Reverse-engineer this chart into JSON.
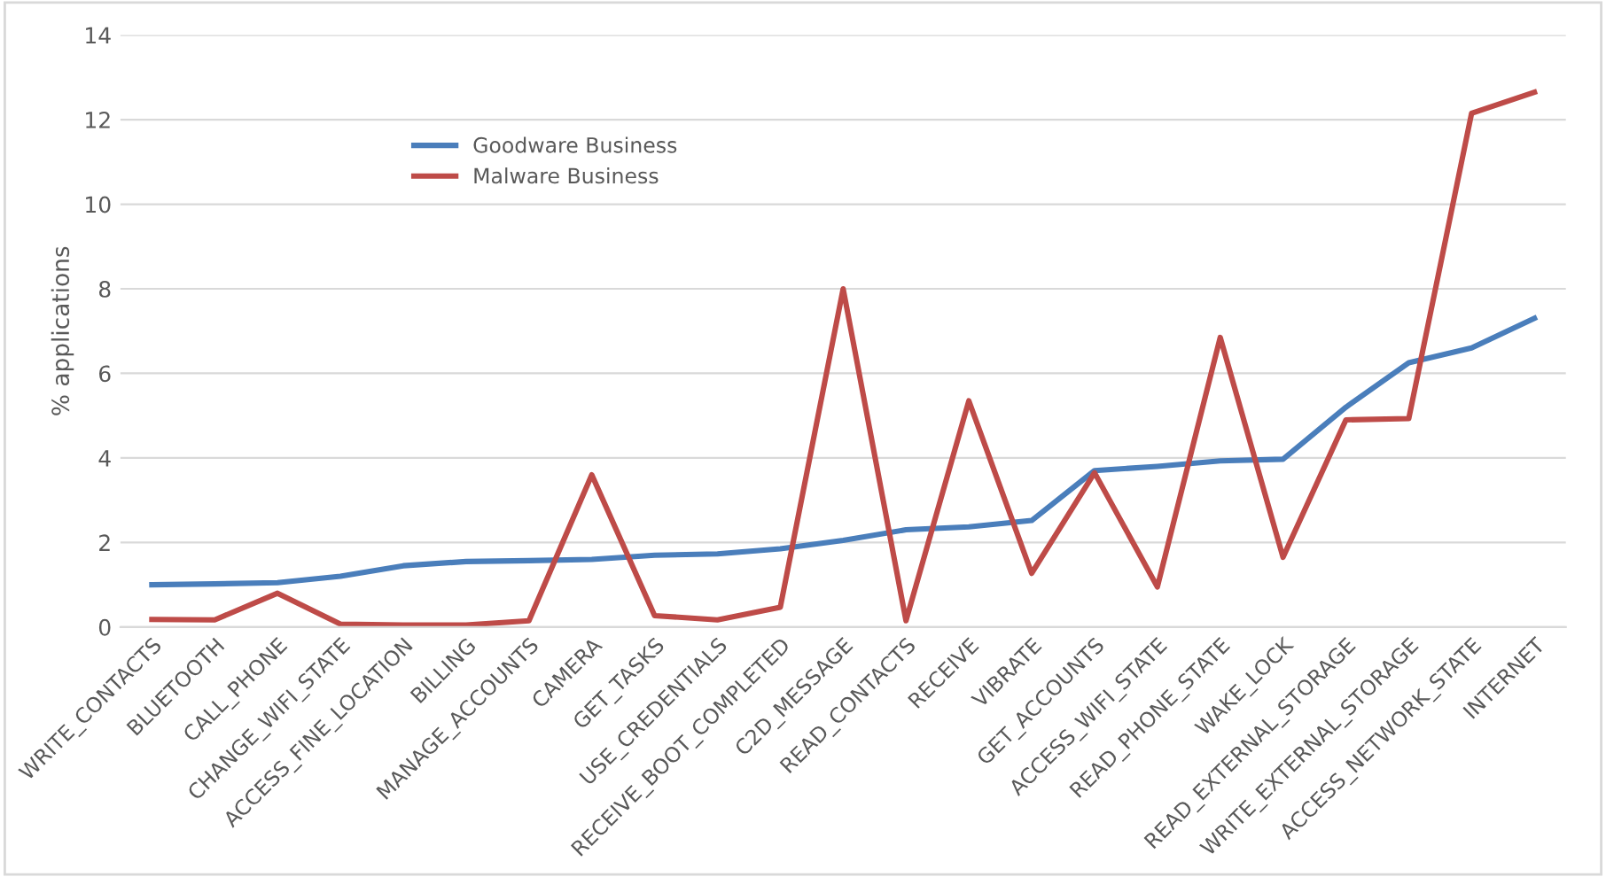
{
  "chart_data": {
    "type": "line",
    "ylabel": "% applications",
    "categories": [
      "WRITE_CONTACTS",
      "BLUETOOTH",
      "CALL_PHONE",
      "CHANGE_WIFI_STATE",
      "ACCESS_FINE_LOCATION",
      "BILLING",
      "MANAGE_ACCOUNTS",
      "CAMERA",
      "GET_TASKS",
      "USE_CREDENTIALS",
      "RECEIVE_BOOT_COMPLETED",
      "C2D_MESSAGE",
      "READ_CONTACTS",
      "RECEIVE",
      "VIBRATE",
      "GET_ACCOUNTS",
      "ACCESS_WIFI_STATE",
      "READ_PHONE_STATE",
      "WAKE_LOCK",
      "READ_EXTERNAL_STORAGE",
      "WRITE_EXTERNAL_STORAGE",
      "ACCESS_NETWORK_STATE",
      "INTERNET"
    ],
    "series": [
      {
        "name": "Goodware Business",
        "color": "#4a7ebb",
        "values": [
          1.0,
          1.02,
          1.05,
          1.2,
          1.45,
          1.55,
          1.57,
          1.6,
          1.7,
          1.73,
          1.85,
          2.05,
          2.3,
          2.37,
          2.52,
          3.7,
          3.8,
          3.93,
          3.97,
          5.2,
          6.25,
          6.6,
          7.3
        ]
      },
      {
        "name": "Malware Business",
        "color": "#be4b48",
        "values": [
          0.18,
          0.17,
          0.8,
          0.07,
          0.05,
          0.05,
          0.15,
          3.6,
          0.27,
          0.17,
          0.47,
          8.0,
          0.15,
          5.35,
          1.27,
          3.65,
          0.95,
          6.85,
          1.65,
          4.9,
          4.93,
          12.15,
          12.65
        ]
      }
    ],
    "ylim": [
      0,
      14
    ],
    "yticks": [
      0,
      2,
      4,
      6,
      8,
      10,
      12,
      14
    ],
    "grid": "y",
    "legend": "top left",
    "marker": "none",
    "line_style": "solid"
  }
}
